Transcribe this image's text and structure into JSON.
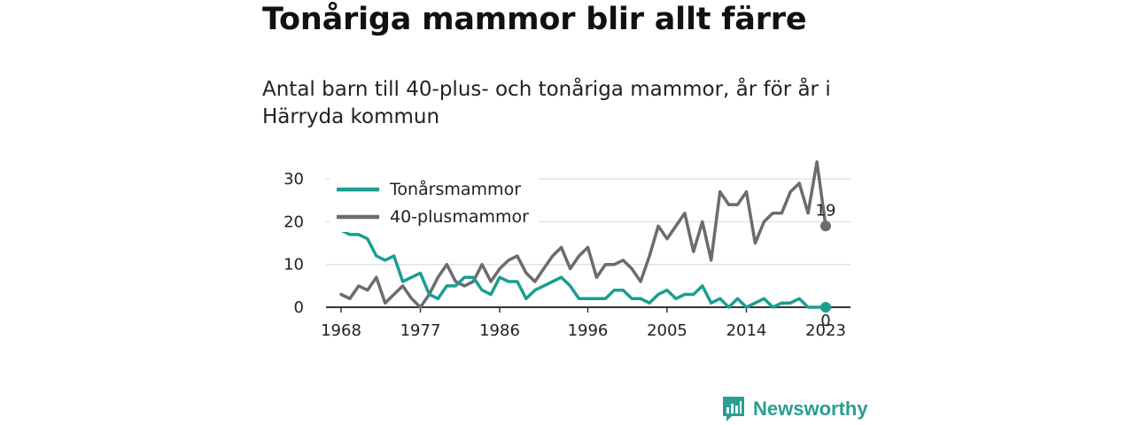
{
  "title": "Tonåriga mammor blir allt färre",
  "subtitle": "Antal barn till 40-plus- och tonåriga mammor, år för år i Härryda kommun",
  "brand": {
    "name": "Newsworthy",
    "icon": "bar-chart-logo-icon",
    "color": "#2a9d95"
  },
  "chart_data": {
    "type": "line",
    "title": "",
    "xlabel": "",
    "ylabel": "",
    "xlim": [
      1968,
      2023
    ],
    "ylim": [
      0,
      35
    ],
    "x_ticks": [
      1968,
      1977,
      1986,
      1996,
      2005,
      2014,
      2023
    ],
    "y_ticks": [
      0,
      10,
      20,
      30
    ],
    "grid": "horizontal",
    "legend_position": "top-left",
    "x": [
      1968,
      1969,
      1970,
      1971,
      1972,
      1973,
      1974,
      1975,
      1976,
      1977,
      1978,
      1979,
      1980,
      1981,
      1982,
      1983,
      1984,
      1985,
      1986,
      1987,
      1988,
      1989,
      1990,
      1991,
      1992,
      1993,
      1994,
      1995,
      1996,
      1997,
      1998,
      1999,
      2000,
      2001,
      2002,
      2003,
      2004,
      2005,
      2006,
      2007,
      2008,
      2009,
      2010,
      2011,
      2012,
      2013,
      2014,
      2015,
      2016,
      2017,
      2018,
      2019,
      2020,
      2021,
      2022,
      2023
    ],
    "series": [
      {
        "name": "Tonårsmammor",
        "color": "#1a9e90",
        "values": [
          18,
          17,
          17,
          16,
          12,
          11,
          12,
          6,
          7,
          8,
          3,
          2,
          5,
          5,
          7,
          7,
          4,
          3,
          7,
          6,
          6,
          2,
          4,
          5,
          6,
          7,
          5,
          2,
          2,
          2,
          2,
          4,
          4,
          2,
          2,
          1,
          3,
          4,
          2,
          3,
          3,
          5,
          1,
          2,
          0,
          2,
          0,
          1,
          2,
          0,
          1,
          1,
          2,
          0,
          0,
          0
        ],
        "end_label": "0"
      },
      {
        "name": "40-plusmammor",
        "color": "#6b6b70",
        "values": [
          3,
          2,
          5,
          4,
          7,
          1,
          3,
          5,
          2,
          0,
          3,
          7,
          10,
          6,
          5,
          6,
          10,
          6,
          9,
          11,
          12,
          8,
          6,
          9,
          12,
          14,
          9,
          12,
          14,
          7,
          10,
          10,
          11,
          9,
          6,
          12,
          19,
          16,
          19,
          22,
          13,
          20,
          11,
          27,
          24,
          24,
          27,
          15,
          20,
          22,
          22,
          27,
          29,
          22,
          34,
          19
        ],
        "end_label": "19"
      }
    ],
    "colors": {
      "grid": "#dddddd",
      "axis": "#333333",
      "text": "#222222"
    }
  }
}
